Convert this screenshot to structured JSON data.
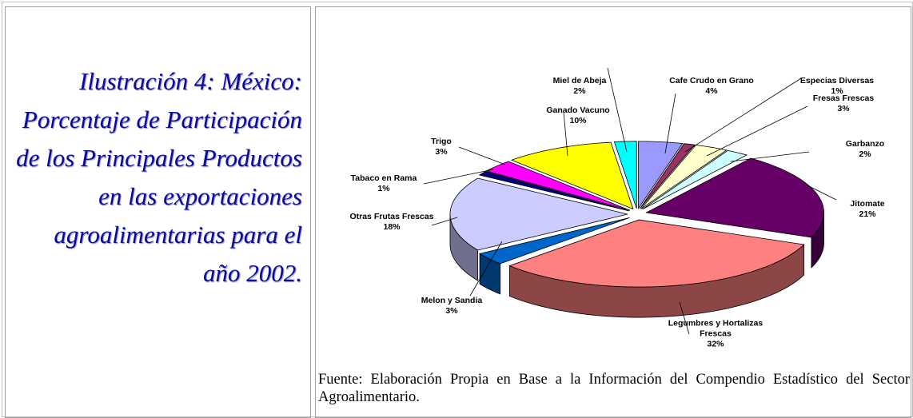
{
  "caption": "Ilustración 4: México: Porcentaje de Participación de los Principales Productos en las exportaciones agroalimentarias para el año 2002.",
  "source": "Fuente: Elaboración Propia en Base a la Información del Compendio Estadístico del Sector Agroalimentario.",
  "chart_data": {
    "type": "pie",
    "categories": [
      "Cafe Crudo en Grano",
      "Especias Diversas",
      "Fresas Frescas",
      "Garbanzo",
      "Jitomate",
      "Legumbres y Hortalizas Frescas",
      "Melon y Sandia",
      "Otras Frutas Frescas",
      "Tabaco en Rama",
      "Trigo",
      "Ganado Vacuno",
      "Miel de Abeja"
    ],
    "values": [
      4,
      1,
      3,
      2,
      21,
      32,
      3,
      18,
      1,
      3,
      10,
      2
    ],
    "value_labels": [
      "4%",
      "1%",
      "3%",
      "2%",
      "21%",
      "32%",
      "3%",
      "18%",
      "1%",
      "3%",
      "10%",
      "2%"
    ],
    "colors": [
      "#9999ff",
      "#993366",
      "#ffffcc",
      "#ccffff",
      "#660066",
      "#ff8080",
      "#0066cc",
      "#ccccff",
      "#000080",
      "#ff00ff",
      "#ffff00",
      "#00ffff"
    ]
  }
}
